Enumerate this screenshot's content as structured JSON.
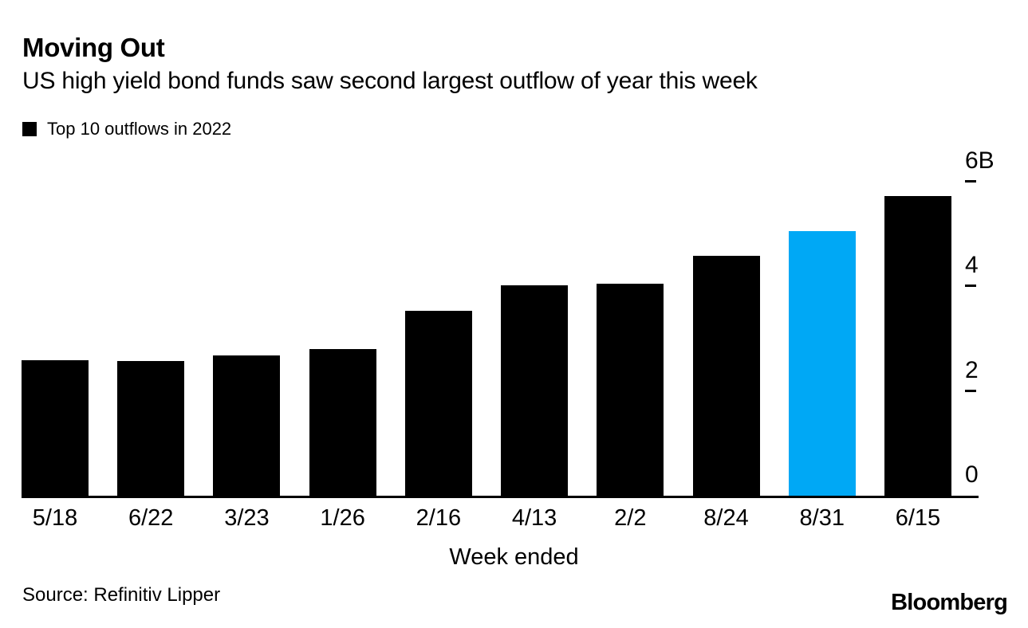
{
  "header": {
    "title": "Moving Out",
    "subtitle": "US high yield bond funds saw second largest outflow of year this week"
  },
  "legend": {
    "label": "Top 10 outflows in 2022",
    "swatch_color": "#000000"
  },
  "chart_data": {
    "type": "bar",
    "title": "Moving Out",
    "subtitle": "US high yield bond funds saw second largest outflow of year this week",
    "series_name": "Top 10 outflows in 2022",
    "categories": [
      "5/18",
      "6/22",
      "3/23",
      "1/26",
      "2/16",
      "4/13",
      "2/2",
      "8/24",
      "8/31",
      "6/15"
    ],
    "values": [
      2.59,
      2.57,
      2.68,
      2.8,
      3.54,
      4.02,
      4.05,
      4.58,
      5.06,
      5.72
    ],
    "unit": "billions of dollars",
    "xlabel": "Week ended",
    "ylabel": "",
    "ylim": [
      0,
      6
    ],
    "yticks": [
      {
        "value": 6,
        "label": "6B"
      },
      {
        "value": 4,
        "label": "4"
      },
      {
        "value": 2,
        "label": "2"
      },
      {
        "value": 0,
        "label": "0"
      }
    ],
    "axis_side": "right",
    "grid": false,
    "legend_position": "top-left",
    "bar_color": "#000000",
    "highlight_color": "#00A8F5",
    "highlight_index": 8,
    "highlight_category": "8/31"
  },
  "footer": {
    "source": "Source: Refinitiv Lipper",
    "brand": "Bloomberg"
  }
}
